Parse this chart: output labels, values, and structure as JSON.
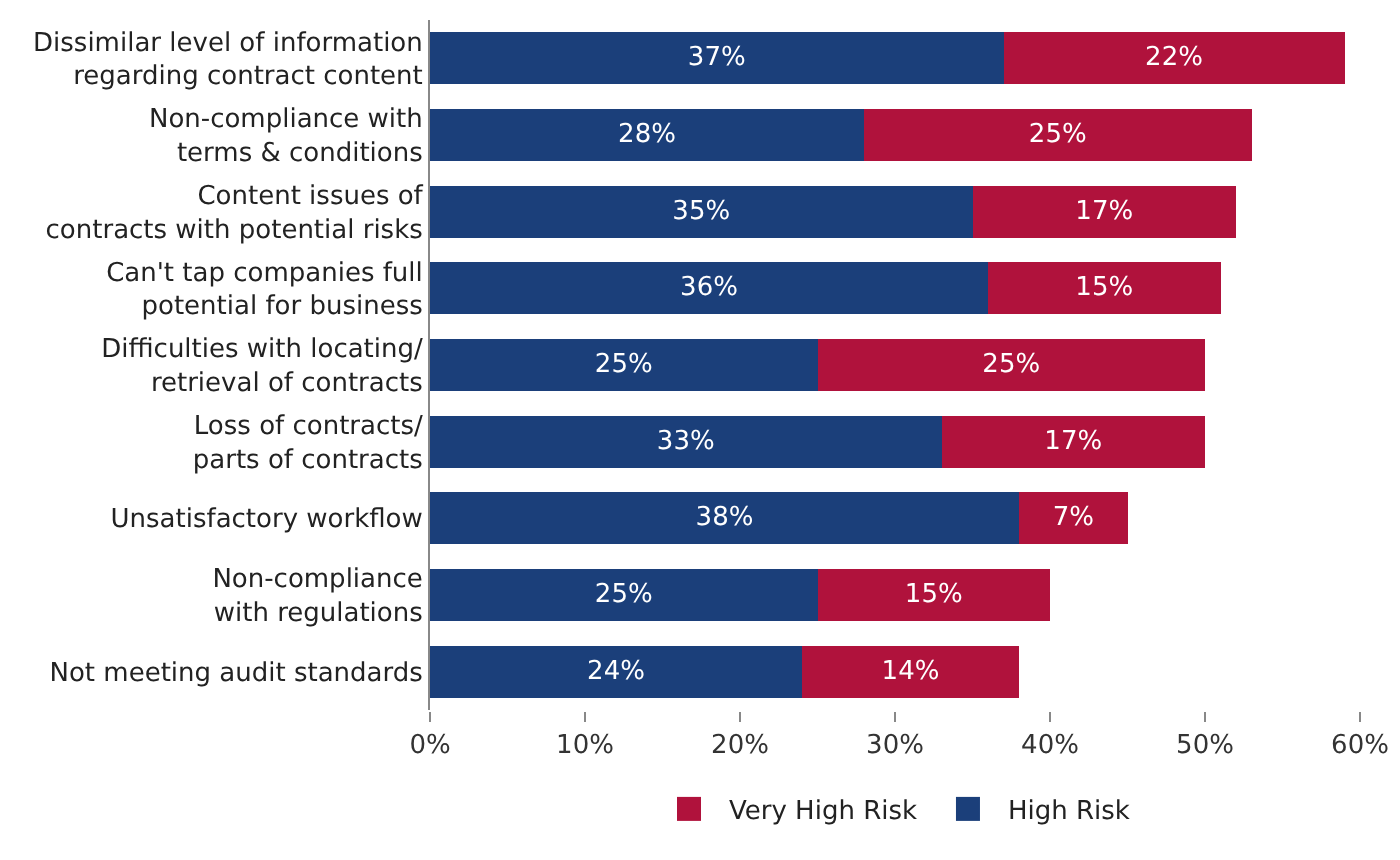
{
  "chart_data": {
    "type": "bar",
    "orientation": "horizontal",
    "stacked": true,
    "categories": [
      "Dissimilar level of information\nregarding contract content",
      "Non-compliance with\nterms & conditions",
      "Content issues of\ncontracts with potential risks",
      "Can't tap companies full\npotential for business",
      "Difficulties with locating/\nretrieval of contracts",
      "Loss of contracts/\nparts of contracts",
      "Unsatisfactory workflow",
      "Non-compliance\nwith regulations",
      "Not meeting audit standards"
    ],
    "series": [
      {
        "name": "High Risk",
        "color": "#1b3f7a",
        "values": [
          37,
          28,
          35,
          36,
          25,
          33,
          38,
          25,
          24
        ],
        "value_labels": [
          "37%",
          "28%",
          "35%",
          "36%",
          "25%",
          "33%",
          "38%",
          "25%",
          "24%"
        ]
      },
      {
        "name": "Very High Risk",
        "color": "#b0123c",
        "values": [
          22,
          25,
          17,
          15,
          25,
          17,
          7,
          15,
          14
        ],
        "value_labels": [
          "22%",
          "25%",
          "17%",
          "15%",
          "25%",
          "17%",
          "7%",
          "15%",
          "14%"
        ]
      }
    ],
    "xlim": [
      0,
      60
    ],
    "xticks": [
      {
        "value": 0,
        "label": "0%"
      },
      {
        "value": 10,
        "label": "10%"
      },
      {
        "value": 20,
        "label": "20%"
      },
      {
        "value": 30,
        "label": "30%"
      },
      {
        "value": 40,
        "label": "40%"
      },
      {
        "value": 50,
        "label": "50%"
      },
      {
        "value": 60,
        "label": "60%"
      }
    ],
    "grid": false,
    "legend": "bottom"
  }
}
